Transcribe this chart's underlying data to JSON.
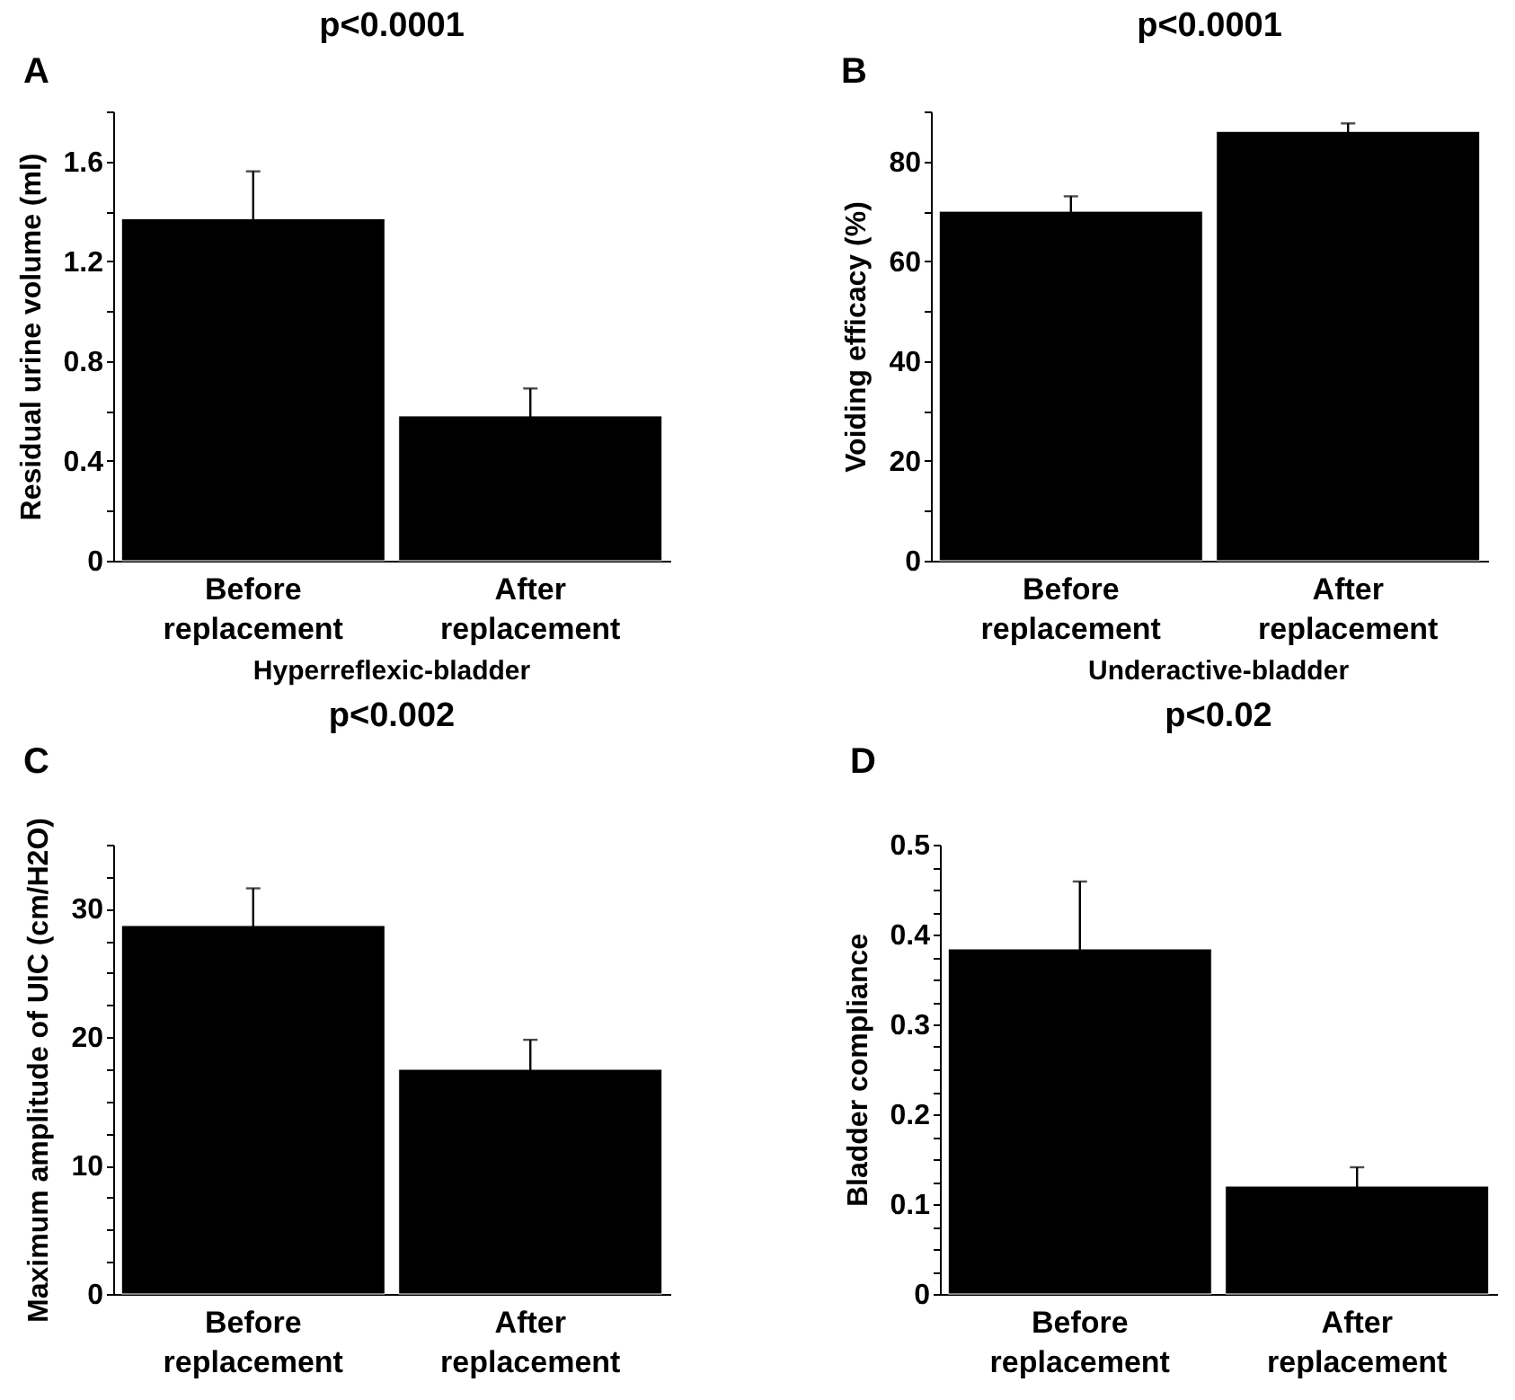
{
  "chart_data": [
    {
      "type": "bar",
      "title": "p<0.0001",
      "ylabel": "Residual urine volume (ml)",
      "annotations": [
        "A"
      ],
      "categories": [
        "Before replacement",
        "After replacement"
      ],
      "values": [
        1.37,
        0.58
      ],
      "errors": [
        0.19,
        0.11
      ],
      "color": "#000000",
      "ylim": [
        0,
        1.8
      ],
      "yticks": [
        0,
        {
          "value": 0.2,
          "label": null
        },
        0.4,
        {
          "value": 0.6,
          "label": null
        },
        0.8,
        {
          "value": 1.0,
          "label": null
        },
        1.2,
        {
          "value": 1.4,
          "label": null
        },
        1.6,
        {
          "value": 1.8,
          "label": null
        }
      ],
      "grid": false
    },
    {
      "type": "bar",
      "title": "p<0.0001",
      "ylabel": "Voiding efficacy (%)",
      "annotations": [
        "B"
      ],
      "categories": [
        "Before replacement",
        "After replacement"
      ],
      "values": [
        70,
        86
      ],
      "errors": [
        3,
        1.6
      ],
      "color": "#000000",
      "ylim": [
        0,
        90
      ],
      "yticks": [
        0,
        {
          "value": 10,
          "label": null
        },
        20,
        {
          "value": 30,
          "label": null
        },
        40,
        {
          "value": 50,
          "label": null
        },
        60,
        {
          "value": 70,
          "label": null
        },
        80,
        {
          "value": 90,
          "label": null
        }
      ],
      "grid": false
    },
    {
      "type": "bar",
      "title": "Hyperreflexic-bladder",
      "subtitle": "p<0.002",
      "ylabel": "Maximum amplitude of UIC (cm/H2O)",
      "annotations": [
        "C"
      ],
      "categories": [
        "Before replacement",
        "After replacement"
      ],
      "values": [
        28.7,
        17.5
      ],
      "errors": [
        2.9,
        2.3
      ],
      "color": "#000000",
      "ylim": [
        0,
        35
      ],
      "yticks": [
        0,
        {
          "value": 2.5,
          "label": null
        },
        {
          "value": 5,
          "label": null
        },
        {
          "value": 7.5,
          "label": null
        },
        10,
        {
          "value": 12.5,
          "label": null
        },
        {
          "value": 15,
          "label": null
        },
        {
          "value": 17.5,
          "label": null
        },
        20,
        {
          "value": 22.5,
          "label": null
        },
        {
          "value": 25,
          "label": null
        },
        {
          "value": 27.5,
          "label": null
        },
        30,
        {
          "value": 32.5,
          "label": null
        },
        {
          "value": 35,
          "label": null
        }
      ],
      "grid": false
    },
    {
      "type": "bar",
      "title": "Underactive-bladder",
      "subtitle": "p<0.02",
      "ylabel": "Bladder compliance",
      "annotations": [
        "D"
      ],
      "categories": [
        "Before replacement",
        "After replacement"
      ],
      "values": [
        0.384,
        0.12
      ],
      "errors": [
        0.075,
        0.021
      ],
      "color": "#000000",
      "ylim": [
        0,
        0.5
      ],
      "yticks": [
        0,
        {
          "value": 0.025,
          "label": null
        },
        {
          "value": 0.05,
          "label": null
        },
        {
          "value": 0.075,
          "label": null
        },
        0.1,
        {
          "value": 0.125,
          "label": null
        },
        {
          "value": 0.15,
          "label": null
        },
        {
          "value": 0.175,
          "label": null
        },
        0.2,
        {
          "value": 0.225,
          "label": null
        },
        {
          "value": 0.25,
          "label": null
        },
        {
          "value": 0.275,
          "label": null
        },
        0.3,
        {
          "value": 0.325,
          "label": null
        },
        {
          "value": 0.35,
          "label": null
        },
        {
          "value": 0.375,
          "label": null
        },
        0.4,
        {
          "value": 0.425,
          "label": null
        },
        {
          "value": 0.45,
          "label": null
        },
        {
          "value": 0.475,
          "label": null
        },
        0.5
      ],
      "grid": false
    }
  ]
}
